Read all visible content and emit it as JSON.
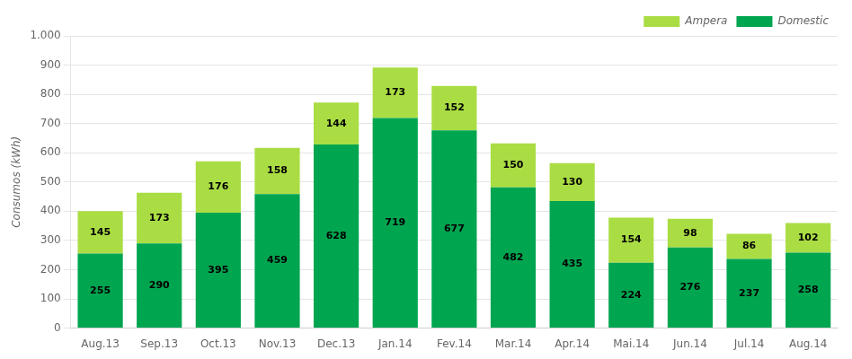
{
  "chart_data": {
    "type": "bar",
    "stacked": true,
    "categories": [
      "Aug.13",
      "Sep.13",
      "Oct.13",
      "Nov.13",
      "Dec.13",
      "Jan.14",
      "Fev.14",
      "Mar.14",
      "Apr.14",
      "Mai.14",
      "Jun.14",
      "Jul.14",
      "Aug.14"
    ],
    "series": [
      {
        "name": "Domestic",
        "color": "#00A550",
        "values": [
          255,
          290,
          395,
          459,
          628,
          719,
          677,
          482,
          435,
          224,
          276,
          237,
          258
        ]
      },
      {
        "name": "Ampera",
        "color": "#AADD44",
        "values": [
          145,
          173,
          176,
          158,
          144,
          173,
          152,
          150,
          130,
          154,
          98,
          86,
          102
        ]
      }
    ],
    "ylabel": "Consumos (kWh)",
    "ylim": [
      0,
      1000
    ],
    "yticks": [
      0,
      100,
      200,
      300,
      400,
      500,
      600,
      700,
      800,
      900,
      {
        "value": 1000,
        "label": "1.000"
      }
    ],
    "grid": true,
    "legend": "upper right",
    "data_labels": true
  }
}
